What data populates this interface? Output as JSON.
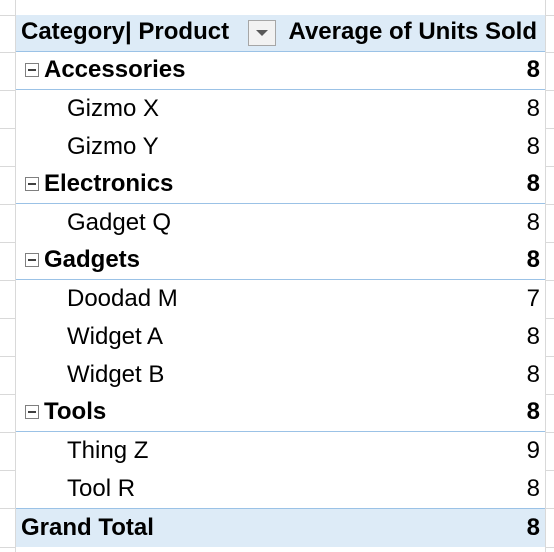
{
  "pivot": {
    "header": {
      "row_label": "Category| Product",
      "value_label": "Average of Units Sold"
    },
    "groups": [
      {
        "category": "Accessories",
        "value": "8",
        "products": [
          {
            "name": "Gizmo X",
            "value": "8"
          },
          {
            "name": "Gizmo Y",
            "value": "8"
          }
        ]
      },
      {
        "category": "Electronics",
        "value": "8",
        "products": [
          {
            "name": "Gadget Q",
            "value": "8"
          }
        ]
      },
      {
        "category": "Gadgets",
        "value": "8",
        "products": [
          {
            "name": "Doodad M",
            "value": "7"
          },
          {
            "name": "Widget A",
            "value": "8"
          },
          {
            "name": "Widget B",
            "value": "8"
          }
        ]
      },
      {
        "category": "Tools",
        "value": "8",
        "products": [
          {
            "name": "Thing Z",
            "value": "9"
          },
          {
            "name": "Tool R",
            "value": "8"
          }
        ]
      }
    ],
    "grand_total": {
      "label": "Grand Total",
      "value": "8"
    }
  },
  "colors": {
    "header_fill": "#ddebf7",
    "border": "#9bc2e6",
    "gridline": "#d9d9d9"
  },
  "icons": {
    "filter": "dropdown-arrow-icon",
    "collapse": "minus-box-icon"
  }
}
